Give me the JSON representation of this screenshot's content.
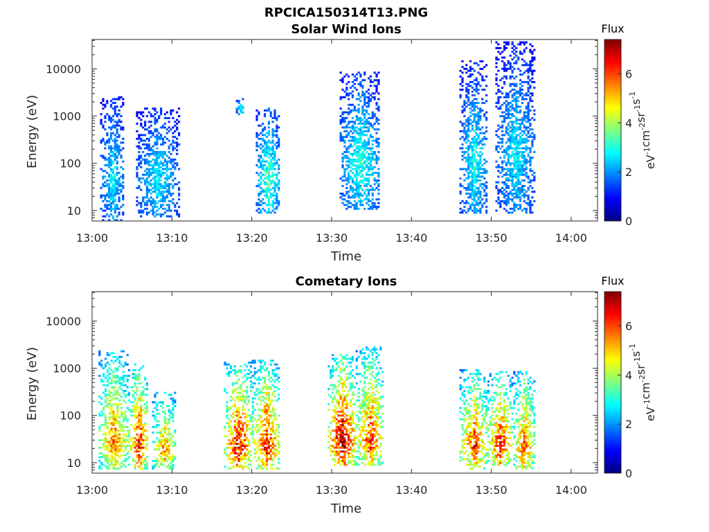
{
  "figure_title": "RPCICA150314T13.PNG",
  "colormap": {
    "name": "jet",
    "stops": [
      "#00007f",
      "#0000ff",
      "#007fff",
      "#00ffff",
      "#7fff7f",
      "#ffff00",
      "#ff7f00",
      "#ff0000",
      "#7f0000"
    ]
  },
  "chart_data": [
    {
      "type": "heatmap",
      "title": "Solar Wind Ions",
      "xlabel": "Time",
      "ylabel": "Energy (eV)",
      "x_ticks": [
        "13:00",
        "13:10",
        "13:20",
        "13:30",
        "13:40",
        "13:50",
        "14:00"
      ],
      "x_range_minutes": [
        0,
        63.3
      ],
      "y_scale": "log",
      "y_range_eV": [
        6,
        42000
      ],
      "y_ticks": [
        {
          "value": 10,
          "label": "10"
        },
        {
          "value": 100,
          "label": "100"
        },
        {
          "value": 1000,
          "label": "1000"
        },
        {
          "value": 10000,
          "label": "10000"
        }
      ],
      "colorbar": {
        "title": "Flux",
        "label": "eV-1cm-2sr-1s-1",
        "range": [
          0,
          7.4
        ],
        "ticks": [
          0,
          2,
          4,
          6
        ]
      },
      "bursts": [
        {
          "t_start": 1.0,
          "t_end": 4.0,
          "e_min": 6,
          "e_max": 2500,
          "peak_flux": 2.8
        },
        {
          "t_start": 5.5,
          "t_end": 10.8,
          "e_min": 7,
          "e_max": 1500,
          "peak_flux": 2.8
        },
        {
          "t_start": 18.0,
          "t_end": 19.0,
          "e_min": 1000,
          "e_max": 2600,
          "peak_flux": 3.0
        },
        {
          "t_start": 20.5,
          "t_end": 23.5,
          "e_min": 8,
          "e_max": 1500,
          "peak_flux": 3.5
        },
        {
          "t_start": 31.0,
          "t_end": 36.0,
          "e_min": 10,
          "e_max": 8000,
          "peak_flux": 3.2
        },
        {
          "t_start": 46.0,
          "t_end": 49.5,
          "e_min": 8,
          "e_max": 14000,
          "peak_flux": 3.0
        },
        {
          "t_start": 50.5,
          "t_end": 55.5,
          "e_min": 8,
          "e_max": 38000,
          "peak_flux": 2.8
        }
      ]
    },
    {
      "type": "heatmap",
      "title": "Cometary Ions",
      "xlabel": "Time",
      "ylabel": "Energy (eV)",
      "x_ticks": [
        "13:00",
        "13:10",
        "13:20",
        "13:30",
        "13:40",
        "13:50",
        "14:00"
      ],
      "x_range_minutes": [
        0,
        63.3
      ],
      "y_scale": "log",
      "y_range_eV": [
        6,
        42000
      ],
      "y_ticks": [
        {
          "value": 10,
          "label": "10"
        },
        {
          "value": 100,
          "label": "100"
        },
        {
          "value": 1000,
          "label": "1000"
        },
        {
          "value": 10000,
          "label": "10000"
        }
      ],
      "colorbar": {
        "title": "Flux",
        "label": "eV-1cm-2sr-1s-1",
        "range": [
          0,
          7.4
        ],
        "ticks": [
          0,
          2,
          4,
          6
        ]
      },
      "bursts": [
        {
          "t_start": 0.8,
          "t_end": 4.5,
          "e_min": 7,
          "e_max": 2300,
          "peak_flux": 6.0
        },
        {
          "t_start": 4.5,
          "t_end": 7.0,
          "e_min": 7,
          "e_max": 1200,
          "peak_flux": 6.8
        },
        {
          "t_start": 7.5,
          "t_end": 10.5,
          "e_min": 7,
          "e_max": 300,
          "peak_flux": 5.8
        },
        {
          "t_start": 16.5,
          "t_end": 20.0,
          "e_min": 7,
          "e_max": 1300,
          "peak_flux": 7.0
        },
        {
          "t_start": 20.0,
          "t_end": 23.5,
          "e_min": 7,
          "e_max": 1400,
          "peak_flux": 6.8
        },
        {
          "t_start": 29.5,
          "t_end": 33.0,
          "e_min": 8,
          "e_max": 2000,
          "peak_flux": 7.4
        },
        {
          "t_start": 33.0,
          "t_end": 36.5,
          "e_min": 8,
          "e_max": 2800,
          "peak_flux": 6.5
        },
        {
          "t_start": 46.0,
          "t_end": 49.5,
          "e_min": 7,
          "e_max": 900,
          "peak_flux": 6.5
        },
        {
          "t_start": 49.5,
          "t_end": 52.5,
          "e_min": 8,
          "e_max": 800,
          "peak_flux": 6.8
        },
        {
          "t_start": 52.5,
          "t_end": 55.5,
          "e_min": 7,
          "e_max": 800,
          "peak_flux": 6.2
        }
      ]
    }
  ]
}
